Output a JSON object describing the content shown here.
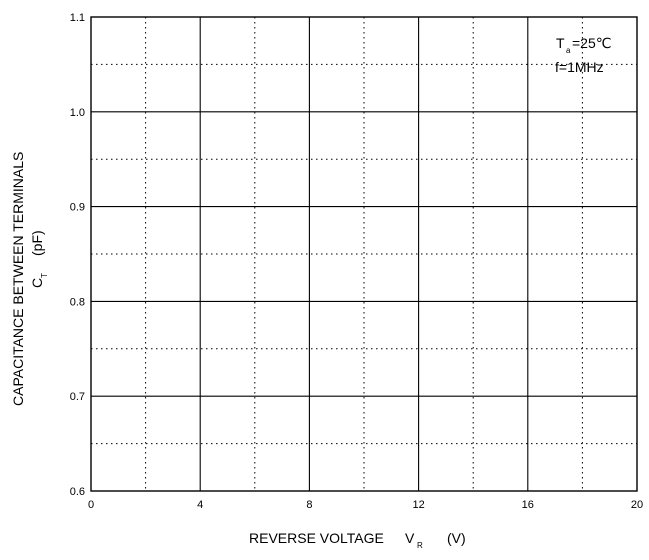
{
  "chart_data": {
    "type": "line",
    "title": "",
    "x_axis": {
      "label_prefix": "REVERSE VOLTAGE",
      "symbol": "V",
      "symbol_sub": "R",
      "unit": "(V)",
      "range": [
        0,
        20
      ],
      "ticks": [
        "0",
        "4",
        "8",
        "12",
        "16",
        "20"
      ]
    },
    "y_axis": {
      "label_line1": "CAPACITANCE BETWEEN TERMINALS",
      "symbol": "C",
      "symbol_sub": "T",
      "unit": "(pF)",
      "range": [
        0.6,
        1.1
      ],
      "ticks": [
        "0.6",
        "0.7",
        "0.8",
        "0.9",
        "1.0",
        "1.1"
      ]
    },
    "grid": true,
    "conditions": {
      "temp_symbol": "T",
      "temp_sub": "a",
      "temp_value": "=25℃",
      "frequency": "f=1MHz"
    },
    "series": []
  }
}
